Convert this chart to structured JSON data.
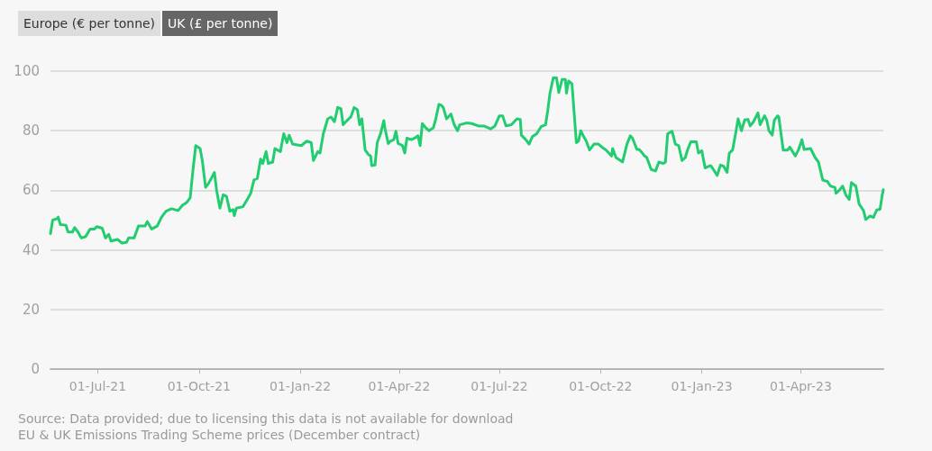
{
  "chart_data": {
    "type": "line",
    "ylabel": "UK (£ per tonne)",
    "subtitle": "EU & UK Emissions Trading Scheme prices (December contract)",
    "annotations": [
      "Europe (€ per tonne)",
      "Source: Data provided; due to licensing this data is not available for download"
    ],
    "xlim": [
      "2021-05-19",
      "2023-06-15"
    ],
    "xticks": [
      {
        "value": "2021-07-01",
        "label": "01-Jul-21"
      },
      {
        "value": "2021-10-01",
        "label": "01-Oct-21"
      },
      {
        "value": "2022-01-01",
        "label": "01-Jan-22"
      },
      {
        "value": "2022-04-01",
        "label": "01-Apr-22"
      },
      {
        "value": "2022-07-01",
        "label": "01-Jul-22"
      },
      {
        "value": "2022-10-01",
        "label": "01-Oct-22"
      },
      {
        "value": "2023-01-01",
        "label": "01-Jan-23"
      },
      {
        "value": "2023-04-01",
        "label": "01-Apr-23"
      }
    ],
    "ylim": [
      0,
      100
    ],
    "yticks": [
      0,
      20,
      40,
      60,
      80,
      100
    ],
    "grid": "y",
    "marker": "none",
    "line_style": "solid",
    "x": [
      "2021-05-19",
      "2021-05-21",
      "2021-05-25",
      "2021-05-26",
      "2021-05-28",
      "2021-06-02",
      "2021-06-04",
      "2021-06-08",
      "2021-06-10",
      "2021-06-13",
      "2021-06-16",
      "2021-06-20",
      "2021-06-24",
      "2021-06-28",
      "2021-06-30",
      "2021-07-05",
      "2021-07-08",
      "2021-07-11",
      "2021-07-13",
      "2021-07-19",
      "2021-07-23",
      "2021-07-27",
      "2021-07-29",
      "2021-08-03",
      "2021-08-07",
      "2021-08-13",
      "2021-08-15",
      "2021-08-19",
      "2021-08-24",
      "2021-08-28",
      "2021-09-01",
      "2021-09-06",
      "2021-09-12",
      "2021-09-16",
      "2021-09-20",
      "2021-09-23",
      "2021-09-25",
      "2021-09-28",
      "2021-10-02",
      "2021-10-04",
      "2021-10-07",
      "2021-10-10",
      "2021-10-15",
      "2021-10-17",
      "2021-10-20",
      "2021-10-23",
      "2021-10-26",
      "2021-10-29",
      "2021-11-01",
      "2021-11-02",
      "2021-11-04",
      "2021-11-10",
      "2021-11-14",
      "2021-11-17",
      "2021-11-20",
      "2021-11-23",
      "2021-11-26",
      "2021-11-28",
      "2021-12-01",
      "2021-12-03",
      "2021-12-07",
      "2021-12-09",
      "2021-12-14",
      "2021-12-17",
      "2021-12-20",
      "2021-12-22",
      "2021-12-25",
      "2022-01-02",
      "2022-01-07",
      "2022-01-11",
      "2022-01-13",
      "2022-01-17",
      "2022-01-19",
      "2022-01-22",
      "2022-01-26",
      "2022-01-29",
      "2022-02-01",
      "2022-02-03",
      "2022-02-04",
      "2022-02-07",
      "2022-02-09",
      "2022-02-13",
      "2022-02-16",
      "2022-02-19",
      "2022-02-22",
      "2022-02-24",
      "2022-02-26",
      "2022-03-01",
      "2022-03-04",
      "2022-03-06",
      "2022-03-07",
      "2022-03-10",
      "2022-03-12",
      "2022-03-15",
      "2022-03-18",
      "2022-03-19",
      "2022-03-22",
      "2022-03-24",
      "2022-03-27",
      "2022-03-29",
      "2022-03-31",
      "2022-04-04",
      "2022-04-06",
      "2022-04-08",
      "2022-04-12",
      "2022-04-15",
      "2022-04-18",
      "2022-04-20",
      "2022-04-22",
      "2022-04-25",
      "2022-04-28",
      "2022-05-02",
      "2022-05-04",
      "2022-05-07",
      "2022-05-09",
      "2022-05-11",
      "2022-05-14",
      "2022-05-18",
      "2022-05-21",
      "2022-05-24",
      "2022-05-26",
      "2022-06-01",
      "2022-06-06",
      "2022-06-12",
      "2022-06-17",
      "2022-06-23",
      "2022-06-27",
      "2022-07-01",
      "2022-07-04",
      "2022-07-07",
      "2022-07-12",
      "2022-07-17",
      "2022-07-20",
      "2022-07-21",
      "2022-07-25",
      "2022-07-28",
      "2022-07-31",
      "2022-08-04",
      "2022-08-08",
      "2022-08-12",
      "2022-08-14",
      "2022-08-16",
      "2022-08-19",
      "2022-08-22",
      "2022-08-24",
      "2022-08-27",
      "2022-08-30",
      "2022-08-31",
      "2022-09-02",
      "2022-09-05",
      "2022-09-09",
      "2022-09-11",
      "2022-09-13",
      "2022-09-15",
      "2022-09-18",
      "2022-09-21",
      "2022-09-25",
      "2022-09-29",
      "2022-10-04",
      "2022-10-06",
      "2022-10-11",
      "2022-10-12",
      "2022-10-15",
      "2022-10-19",
      "2022-10-21",
      "2022-10-25",
      "2022-10-28",
      "2022-10-30",
      "2022-11-03",
      "2022-11-05",
      "2022-11-08",
      "2022-11-10",
      "2022-11-12",
      "2022-11-16",
      "2022-11-20",
      "2022-11-23",
      "2022-11-27",
      "2022-11-29",
      "2022-12-01",
      "2022-12-05",
      "2022-12-08",
      "2022-12-11",
      "2022-12-14",
      "2022-12-17",
      "2022-12-19",
      "2022-12-22",
      "2022-12-27",
      "2022-12-29",
      "2023-01-01",
      "2023-01-04",
      "2023-01-09",
      "2023-01-11",
      "2023-01-15",
      "2023-01-18",
      "2023-01-21",
      "2023-01-24",
      "2023-01-26",
      "2023-01-29",
      "2023-02-01",
      "2023-02-03",
      "2023-02-06",
      "2023-02-09",
      "2023-02-12",
      "2023-02-14",
      "2023-02-17",
      "2023-02-21",
      "2023-02-23",
      "2023-02-27",
      "2023-03-01",
      "2023-03-03",
      "2023-03-06",
      "2023-03-08",
      "2023-03-11",
      "2023-03-12",
      "2023-03-16",
      "2023-03-20",
      "2023-03-22",
      "2023-03-27",
      "2023-03-30",
      "2023-04-02",
      "2023-04-04",
      "2023-04-10",
      "2023-04-14",
      "2023-04-17",
      "2023-04-21",
      "2023-04-25",
      "2023-04-28",
      "2023-05-02",
      "2023-05-03",
      "2023-05-06",
      "2023-05-09",
      "2023-05-12",
      "2023-05-15",
      "2023-05-17",
      "2023-05-21",
      "2023-05-24",
      "2023-05-28",
      "2023-05-30",
      "2023-06-03",
      "2023-06-06",
      "2023-06-09",
      "2023-06-12",
      "2023-06-14",
      "2023-06-15"
    ],
    "series": [
      {
        "color": "#22cc70",
        "values": [
          45.5,
          50,
          50.5,
          51,
          48.5,
          48.3,
          46,
          46,
          47.5,
          46,
          44,
          44.5,
          47,
          47,
          47.8,
          47.3,
          44,
          45.2,
          43,
          43.5,
          42.3,
          42.5,
          44,
          44,
          48,
          48,
          49.5,
          47,
          48,
          51,
          53,
          53.8,
          53.2,
          55,
          56,
          57.5,
          65,
          75,
          74,
          70,
          61,
          62.5,
          66,
          60,
          54,
          58.5,
          58,
          53,
          53.5,
          51.5,
          54,
          54.5,
          57,
          59,
          63.5,
          64,
          70.5,
          69,
          73,
          69,
          69.5,
          74,
          73,
          79,
          76,
          78.5,
          75.5,
          75,
          76.5,
          76,
          70,
          73,
          72.5,
          79,
          84,
          84.6,
          83,
          86,
          87.8,
          87.4,
          82,
          83.6,
          84.6,
          87.8,
          87,
          82,
          84,
          73.5,
          72,
          71.5,
          68.3,
          68.5,
          76,
          79,
          83.4,
          80.8,
          75.7,
          76.5,
          77,
          79.8,
          75.7,
          75,
          72.5,
          77.5,
          77,
          77.5,
          78.3,
          75,
          82.4,
          81,
          80,
          81,
          83.6,
          88.8,
          88.6,
          87.8,
          84,
          85.6,
          82,
          80,
          82,
          82.6,
          82.4,
          81.6,
          81.6,
          80.6,
          81.6,
          85,
          85,
          81.6,
          82,
          84,
          83.8,
          78.5,
          77,
          75.5,
          78,
          79,
          81.4,
          82,
          86.8,
          92.6,
          97.7,
          97.7,
          92.8,
          97.2,
          97.2,
          92.6,
          96.7,
          95.7,
          76,
          76.5,
          80,
          78.5,
          76.5,
          73.5,
          75.5,
          75.5,
          74,
          73.5,
          71.5,
          74,
          71,
          70,
          69.5,
          75.5,
          78.3,
          77.5,
          73.7,
          73.7,
          72.5,
          71.5,
          71,
          67,
          66.5,
          69.5,
          69,
          69.5,
          79,
          79.8,
          75.5,
          75,
          70,
          71,
          73.5,
          76.3,
          76.3,
          72.5,
          73.3,
          67.5,
          68.3,
          67.3,
          65,
          68.5,
          68,
          66,
          72.5,
          73.5,
          79.6,
          84,
          80,
          83.6,
          83.8,
          81.6,
          83,
          86,
          82,
          85,
          83.6,
          80,
          78.5,
          83.6,
          85,
          84.6,
          73.5,
          73.5,
          74.5,
          71.5,
          73.7,
          77,
          73.7,
          74,
          71,
          69.5,
          63.4,
          63,
          61.4,
          61,
          59,
          60,
          61.4,
          58.4,
          56.9,
          62.6,
          61.4,
          55.4,
          53.2,
          50.2,
          51.4,
          50.9,
          53.4,
          53.6,
          58.4,
          60.2
        ]
      }
    ]
  }
}
